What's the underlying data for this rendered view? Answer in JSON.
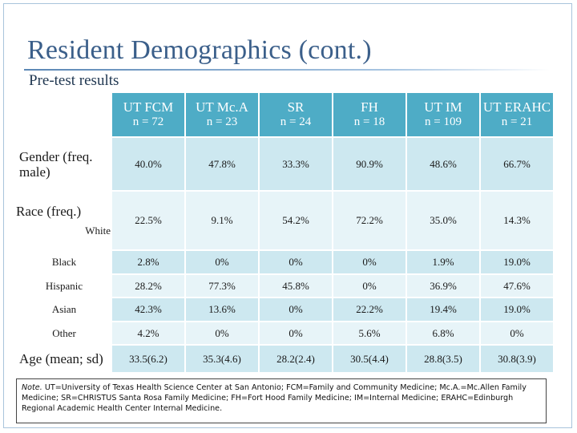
{
  "title": "Resident Demographics (cont.)",
  "subtitle": "Pre-test results",
  "columns": [
    {
      "name": "UT FCM",
      "n": "n = 72"
    },
    {
      "name": "UT Mc.A",
      "n": "n = 23"
    },
    {
      "name": "SR",
      "n": "n = 24"
    },
    {
      "name": "FH",
      "n": "n = 18"
    },
    {
      "name": "UT IM",
      "n": "n = 109"
    },
    {
      "name": "UT ERAHC",
      "n": "n = 21"
    }
  ],
  "rows": {
    "gender": {
      "label": "Gender (freq. male)",
      "values": [
        "40.0%",
        "47.8%",
        "33.3%",
        "90.9%",
        "48.6%",
        "66.7%"
      ]
    },
    "race_label": "Race (freq.)",
    "white": {
      "label": "White",
      "values": [
        "22.5%",
        "9.1%",
        "54.2%",
        "72.2%",
        "35.0%",
        "14.3%"
      ]
    },
    "black": {
      "label": "Black",
      "values": [
        "2.8%",
        "0%",
        "0%",
        "0%",
        "1.9%",
        "19.0%"
      ]
    },
    "hispanic": {
      "label": "Hispanic",
      "values": [
        "28.2%",
        "77.3%",
        "45.8%",
        "0%",
        "36.9%",
        "47.6%"
      ]
    },
    "asian": {
      "label": "Asian",
      "values": [
        "42.3%",
        "13.6%",
        "0%",
        "22.2%",
        "19.4%",
        "19.0%"
      ]
    },
    "other": {
      "label": "Other",
      "values": [
        "4.2%",
        "0%",
        "0%",
        "5.6%",
        "6.8%",
        "0%"
      ]
    },
    "age": {
      "label": "Age (mean; sd)",
      "values": [
        "33.5(6.2)",
        "35.3(4.6)",
        "28.2(2.4)",
        "30.5(4.4)",
        "28.8(3.5)",
        "30.8(3.9)"
      ]
    }
  },
  "note": {
    "prefix": "Note.",
    "text": " UT=University of Texas Health Science Center at San Antonio; FCM=Family and Community Medicine; Mc.A.=Mc.Allen Family Medicine; SR=CHRISTUS Santa Rosa Family Medicine; FH=Fort Hood Family Medicine; IM=Internal Medicine; ERAHC=Edinburgh Regional Academic Health Center Internal Medicine."
  },
  "colors": {
    "header": "#4eacc6",
    "row_dark": "#cde8f0",
    "row_light": "#e7f4f8",
    "title": "#3b5f8a"
  }
}
